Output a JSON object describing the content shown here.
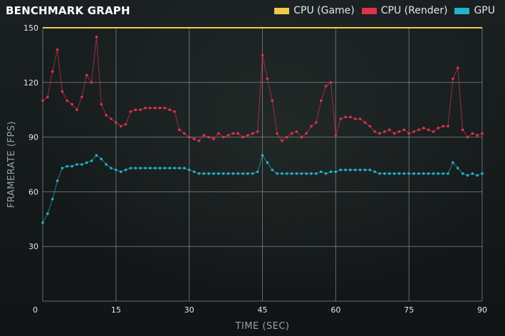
{
  "header": {
    "title": "BENCHMARK GRAPH"
  },
  "colors": {
    "cpu_game": "#f2c94c",
    "cpu_render": "#e0334a",
    "gpu": "#1fb5c9",
    "grid": "#8a8f92"
  },
  "chart_data": {
    "type": "scatter",
    "title": "BENCHMARK GRAPH",
    "xlabel": "TIME (SEC)",
    "ylabel": "FRAMERATE (FPS)",
    "xlim": [
      0,
      90
    ],
    "ylim": [
      0,
      150
    ],
    "x_ticks": [
      "0",
      "15",
      "30",
      "45",
      "60",
      "75",
      "90"
    ],
    "y_ticks": [
      "30",
      "60",
      "90",
      "120",
      "150"
    ],
    "grid": true,
    "legend_position": "top-right",
    "series": [
      {
        "name": "CPU (Game)",
        "color": "#f2c94c",
        "x": [
          0,
          90
        ],
        "y": [
          150,
          150
        ]
      },
      {
        "name": "CPU (Render)",
        "color": "#e0334a",
        "x": [
          0,
          1,
          2,
          3,
          4,
          5,
          6,
          7,
          8,
          9,
          10,
          11,
          12,
          13,
          14,
          15,
          16,
          17,
          18,
          19,
          20,
          21,
          22,
          23,
          24,
          25,
          26,
          27,
          28,
          29,
          30,
          31,
          32,
          33,
          34,
          35,
          36,
          37,
          38,
          39,
          40,
          41,
          42,
          43,
          44,
          45,
          46,
          47,
          48,
          49,
          50,
          51,
          52,
          53,
          54,
          55,
          56,
          57,
          58,
          59,
          60,
          61,
          62,
          63,
          64,
          65,
          66,
          67,
          68,
          69,
          70,
          71,
          72,
          73,
          74,
          75,
          76,
          77,
          78,
          79,
          80,
          81,
          82,
          83,
          84,
          85,
          86,
          87,
          88,
          89,
          90
        ],
        "y": [
          110,
          112,
          126,
          138,
          115,
          110,
          108,
          105,
          112,
          124,
          120,
          145,
          108,
          102,
          100,
          98,
          96,
          97,
          104,
          105,
          105,
          106,
          106,
          106,
          106,
          106,
          105,
          104,
          94,
          92,
          90,
          89,
          88,
          91,
          90,
          89,
          92,
          90,
          91,
          92,
          92,
          90,
          91,
          92,
          93,
          135,
          122,
          110,
          92,
          88,
          90,
          92,
          93,
          90,
          92,
          96,
          98,
          110,
          118,
          120,
          91,
          100,
          101,
          101,
          100,
          100,
          98,
          96,
          93,
          92,
          93,
          94,
          92,
          93,
          94,
          92,
          93,
          94,
          95,
          94,
          93,
          95,
          96,
          96,
          122,
          128,
          94,
          90,
          92,
          91,
          92
        ]
      },
      {
        "name": "GPU",
        "color": "#1fb5c9",
        "x": [
          0,
          1,
          2,
          3,
          4,
          5,
          6,
          7,
          8,
          9,
          10,
          11,
          12,
          13,
          14,
          15,
          16,
          17,
          18,
          19,
          20,
          21,
          22,
          23,
          24,
          25,
          26,
          27,
          28,
          29,
          30,
          31,
          32,
          33,
          34,
          35,
          36,
          37,
          38,
          39,
          40,
          41,
          42,
          43,
          44,
          45,
          46,
          47,
          48,
          49,
          50,
          51,
          52,
          53,
          54,
          55,
          56,
          57,
          58,
          59,
          60,
          61,
          62,
          63,
          64,
          65,
          66,
          67,
          68,
          69,
          70,
          71,
          72,
          73,
          74,
          75,
          76,
          77,
          78,
          79,
          80,
          81,
          82,
          83,
          84,
          85,
          86,
          87,
          88,
          89,
          90
        ],
        "y": [
          43,
          48,
          56,
          66,
          73,
          74,
          74,
          75,
          75,
          76,
          77,
          80,
          78,
          75,
          73,
          72,
          71,
          72,
          73,
          73,
          73,
          73,
          73,
          73,
          73,
          73,
          73,
          73,
          73,
          73,
          72,
          71,
          70,
          70,
          70,
          70,
          70,
          70,
          70,
          70,
          70,
          70,
          70,
          70,
          71,
          80,
          76,
          72,
          70,
          70,
          70,
          70,
          70,
          70,
          70,
          70,
          70,
          71,
          70,
          71,
          71,
          72,
          72,
          72,
          72,
          72,
          72,
          72,
          71,
          70,
          70,
          70,
          70,
          70,
          70,
          70,
          70,
          70,
          70,
          70,
          70,
          70,
          70,
          70,
          76,
          73,
          70,
          69,
          70,
          69,
          70
        ]
      }
    ]
  }
}
